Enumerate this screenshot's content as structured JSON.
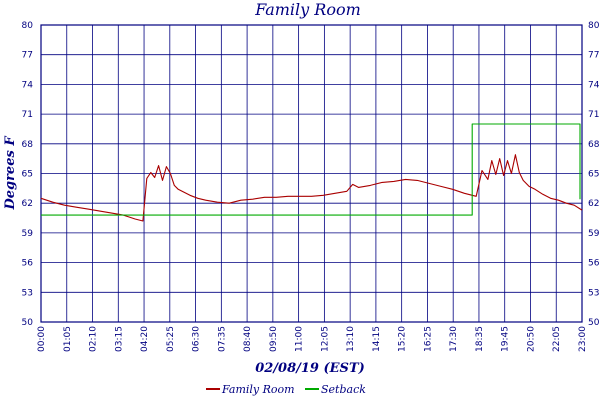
{
  "chart_data": {
    "type": "line",
    "title": "Family Room",
    "xlabel": "02/08/19 (EST)",
    "ylabel": "Degrees F",
    "ylim": [
      50,
      80
    ],
    "yticks": [
      "80",
      "77",
      "74",
      "71",
      "68",
      "65",
      "62",
      "59",
      "56",
      "53",
      "50"
    ],
    "y_tick_display": [
      "80",
      "77",
      "74",
      "71",
      "68",
      "65",
      "62",
      "59",
      "56",
      "53",
      "50"
    ],
    "y_tick_values": [
      80,
      77,
      74,
      71,
      68,
      65,
      62,
      59,
      56,
      53,
      50
    ],
    "xlim": [
      "00:00",
      "23:00"
    ],
    "xticks": [
      "00:00",
      "01:05",
      "02:10",
      "03:15",
      "04:20",
      "05:25",
      "06:30",
      "07:35",
      "08:40",
      "09:50",
      "11:00",
      "12:05",
      "13:10",
      "14:15",
      "15:20",
      "16:25",
      "17:30",
      "18:35",
      "19:45",
      "20:50",
      "22:05",
      "23:00"
    ],
    "grid": true,
    "legend_position": "bottom",
    "series": [
      {
        "name": "Family Room",
        "color": "#aa0000",
        "x": [
          "00:00",
          "00:30",
          "01:00",
          "01:30",
          "02:00",
          "02:30",
          "03:00",
          "03:30",
          "04:00",
          "04:20",
          "04:30",
          "04:40",
          "04:50",
          "05:00",
          "05:10",
          "05:20",
          "05:30",
          "05:40",
          "05:50",
          "06:00",
          "06:20",
          "06:40",
          "07:00",
          "07:30",
          "08:00",
          "08:30",
          "09:00",
          "09:30",
          "10:00",
          "10:30",
          "11:00",
          "11:30",
          "12:00",
          "12:30",
          "13:00",
          "13:15",
          "13:30",
          "14:00",
          "14:30",
          "15:00",
          "15:30",
          "16:00",
          "16:30",
          "17:00",
          "17:30",
          "18:00",
          "18:30",
          "18:45",
          "19:00",
          "19:10",
          "19:20",
          "19:30",
          "19:40",
          "19:50",
          "20:00",
          "20:10",
          "20:20",
          "20:30",
          "20:45",
          "21:00",
          "21:20",
          "21:40",
          "22:00",
          "22:20",
          "22:40",
          "23:00"
        ],
        "values": [
          62.5,
          62.1,
          61.8,
          61.6,
          61.4,
          61.2,
          61.0,
          60.8,
          60.4,
          60.2,
          64.5,
          65.1,
          64.6,
          65.8,
          64.3,
          65.7,
          65.0,
          63.8,
          63.4,
          63.2,
          62.8,
          62.5,
          62.3,
          62.1,
          62.0,
          62.3,
          62.4,
          62.6,
          62.6,
          62.7,
          62.7,
          62.7,
          62.8,
          63.0,
          63.2,
          63.9,
          63.6,
          63.8,
          64.1,
          64.2,
          64.4,
          64.3,
          64.0,
          63.7,
          63.4,
          63.0,
          62.7,
          65.3,
          64.4,
          66.3,
          64.9,
          66.5,
          64.8,
          66.3,
          65.0,
          66.9,
          65.1,
          64.3,
          63.7,
          63.4,
          62.9,
          62.5,
          62.3,
          62.0,
          61.8,
          61.3
        ]
      },
      {
        "name": "Setback",
        "color": "#00aa00",
        "x": [
          "00:00",
          "18:20",
          "18:20",
          "22:55",
          "22:55"
        ],
        "values": [
          60.8,
          60.8,
          70.0,
          70.0,
          62.4
        ]
      }
    ]
  },
  "legend": [
    {
      "label": "Family Room",
      "color": "#aa0000"
    },
    {
      "label": "Setback",
      "color": "#00aa00"
    }
  ]
}
